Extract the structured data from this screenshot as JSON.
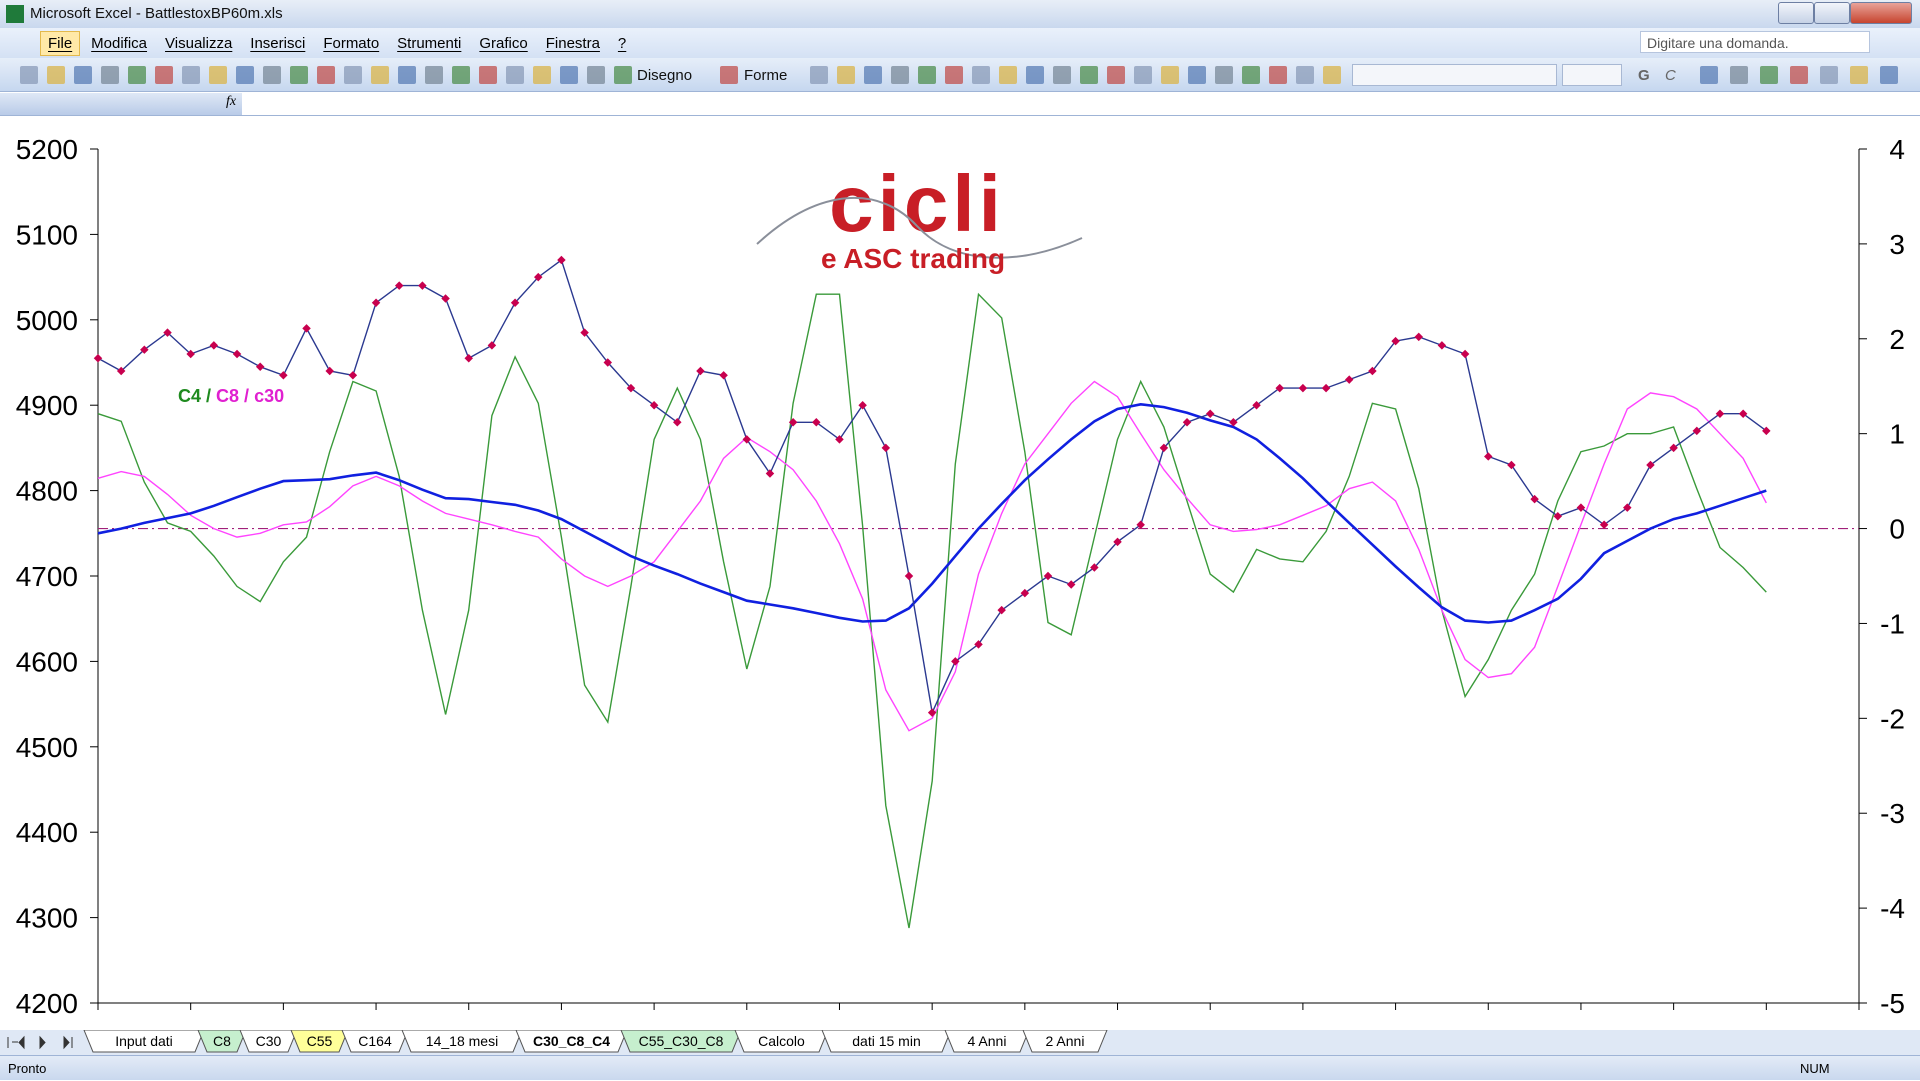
{
  "window": {
    "title": "Microsoft Excel - BattlestoxBP60m.xls",
    "help_box": "Digitare una domanda."
  },
  "menu": [
    "File",
    "Modifica",
    "Visualizza",
    "Inserisci",
    "Formato",
    "Strumenti",
    "Grafico",
    "Finestra",
    "?"
  ],
  "toolbar": {
    "draw": "Disegno",
    "shapes": "Forme",
    "bold": "G",
    "italic": "C"
  },
  "formula_bar": {
    "fx": "fx"
  },
  "sheet_tabs": [
    {
      "label": "Input dati",
      "color": "#ffffff"
    },
    {
      "label": "C8",
      "color": "#c6efce"
    },
    {
      "label": "C30",
      "color": "#ffffff"
    },
    {
      "label": "C55",
      "color": "#ffff99"
    },
    {
      "label": "C164",
      "color": "#ffffff"
    },
    {
      "label": "14_18 mesi",
      "color": "#ffffff"
    },
    {
      "label": "C30_C8_C4",
      "color": "#ffffff"
    },
    {
      "label": "C55_C30_C8",
      "color": "#c6efce"
    },
    {
      "label": "Calcolo",
      "color": "#ffffff"
    },
    {
      "label": "dati 15 min",
      "color": "#ffffff"
    },
    {
      "label": "4 Anni",
      "color": "#ffffff"
    },
    {
      "label": "2 Anni",
      "color": "#ffffff"
    }
  ],
  "active_tab": 6,
  "status": {
    "left": "Pronto",
    "right": "NUM"
  },
  "chart_data": {
    "type": "line",
    "logo": {
      "title": "cicli",
      "subtitle": "e ASC trading"
    },
    "legend_separator": "/",
    "x": [
      0,
      1,
      2,
      3,
      4,
      5,
      6,
      7,
      8,
      9,
      10,
      11,
      12,
      13,
      14,
      15,
      16,
      17,
      18,
      19,
      20,
      21,
      22,
      23,
      24,
      25,
      26,
      27,
      28,
      29,
      30,
      31,
      32,
      33,
      34,
      35,
      36,
      37,
      38,
      39,
      40,
      41,
      42,
      43,
      44,
      45,
      46,
      47,
      48,
      49,
      50,
      51,
      52,
      53,
      54,
      55,
      56,
      57,
      58,
      59,
      60,
      61,
      62,
      63,
      64,
      65,
      66,
      67,
      68,
      69,
      70,
      71,
      72
    ],
    "xlim": [
      0,
      76
    ],
    "xticks": [
      0,
      4,
      8,
      12,
      16,
      20,
      24,
      28,
      32,
      36,
      40,
      44,
      48,
      52,
      56,
      60,
      64,
      68,
      72,
      76
    ],
    "ylim": [
      4200,
      5200
    ],
    "yticks": [
      4200,
      4300,
      4400,
      4500,
      4600,
      4700,
      4800,
      4900,
      5000,
      5100,
      5200
    ],
    "y2lim": [
      -5,
      4
    ],
    "y2ticks": [
      -5,
      -4,
      -3,
      -2,
      -1,
      0,
      1,
      2,
      3,
      4
    ],
    "reference_line": {
      "value": 0,
      "axis": "y2",
      "color": "#a0207a"
    },
    "series": [
      {
        "name": "C4",
        "color": "#3a9a3a",
        "label_color": "#1e8a1e",
        "axis": "y2",
        "values": [
          1.21,
          1.13,
          0.49,
          0.06,
          -0.03,
          -0.29,
          -0.61,
          -0.77,
          -0.35,
          -0.09,
          0.81,
          1.55,
          1.45,
          0.55,
          -0.86,
          -1.96,
          -0.86,
          1.19,
          1.81,
          1.32,
          -0.09,
          -1.65,
          -2.04,
          -0.61,
          0.94,
          1.48,
          0.94,
          -0.35,
          -1.48,
          -0.61,
          1.32,
          2.47,
          2.47,
          0.03,
          -2.92,
          -4.21,
          -2.66,
          0.68,
          2.47,
          2.22,
          0.81,
          -0.99,
          -1.12,
          -0.09,
          0.94,
          1.55,
          1.07,
          0.29,
          -0.48,
          -0.67,
          -0.22,
          -0.32,
          -0.35,
          -0.03,
          0.55,
          1.32,
          1.26,
          0.42,
          -0.86,
          -1.77,
          -1.38,
          -0.86,
          -0.48,
          0.29,
          0.81,
          0.87,
          1.0,
          1.0,
          1.07,
          0.42,
          -0.2,
          -0.41,
          -0.67
        ]
      },
      {
        "name": "C8",
        "color": "#ff44ff",
        "label_color": "#e020d0",
        "axis": "y2",
        "values": [
          0.53,
          0.6,
          0.55,
          0.36,
          0.14,
          0.0,
          -0.09,
          -0.05,
          0.04,
          0.07,
          0.23,
          0.45,
          0.55,
          0.45,
          0.29,
          0.16,
          0.1,
          0.04,
          -0.03,
          -0.09,
          -0.32,
          -0.5,
          -0.61,
          -0.5,
          -0.35,
          -0.03,
          0.29,
          0.74,
          0.96,
          0.81,
          0.62,
          0.29,
          -0.16,
          -0.74,
          -1.7,
          -2.13,
          -2.0,
          -1.51,
          -0.48,
          0.16,
          0.68,
          1.0,
          1.32,
          1.55,
          1.39,
          1.0,
          0.62,
          0.32,
          0.04,
          -0.03,
          -0.01,
          0.04,
          0.14,
          0.24,
          0.42,
          0.49,
          0.29,
          -0.22,
          -0.86,
          -1.38,
          -1.57,
          -1.53,
          -1.25,
          -0.61,
          0.04,
          0.68,
          1.26,
          1.43,
          1.39,
          1.26,
          1.0,
          0.74,
          0.27
        ]
      },
      {
        "name": "c30",
        "color": "#1020e0",
        "label_color": "#e020d0",
        "axis": "y2",
        "values": [
          -0.05,
          0.0,
          0.06,
          0.11,
          0.16,
          0.24,
          0.33,
          0.42,
          0.5,
          0.51,
          0.52,
          0.56,
          0.59,
          0.51,
          0.41,
          0.32,
          0.31,
          0.28,
          0.25,
          0.19,
          0.1,
          -0.03,
          -0.16,
          -0.29,
          -0.39,
          -0.48,
          -0.58,
          -0.67,
          -0.76,
          -0.8,
          -0.84,
          -0.89,
          -0.94,
          -0.98,
          -0.97,
          -0.84,
          -0.58,
          -0.29,
          0.0,
          0.26,
          0.51,
          0.73,
          0.94,
          1.13,
          1.26,
          1.31,
          1.28,
          1.22,
          1.14,
          1.07,
          0.94,
          0.74,
          0.53,
          0.29,
          0.06,
          -0.17,
          -0.4,
          -0.62,
          -0.83,
          -0.97,
          -0.99,
          -0.97,
          -0.86,
          -0.74,
          -0.53,
          -0.26,
          -0.13,
          0.0,
          0.1,
          0.16,
          0.24,
          0.32,
          0.4
        ]
      },
      {
        "color": "#2b3990",
        "marker_color": "#c8004e",
        "values": [
          4955,
          4940,
          4965,
          4985,
          4960,
          4970,
          4960,
          4945,
          4935,
          4990,
          4940,
          4935,
          5020,
          5040,
          5040,
          5025,
          4955,
          4970,
          5020,
          5050,
          5070,
          4985,
          4950,
          4920,
          4900,
          4880,
          4940,
          4935,
          4860,
          4820,
          4880,
          4880,
          4860,
          4900,
          4850,
          4700,
          4540,
          4600,
          4620,
          4660,
          4680,
          4700,
          4690,
          4710,
          4740,
          4760,
          4850,
          4880,
          4890,
          4880,
          4900,
          4920,
          4920,
          4920,
          4930,
          4940,
          4975,
          4980,
          4970,
          4960,
          4840,
          4830,
          4790,
          4770,
          4780,
          4760,
          4780,
          4830,
          4850,
          4870,
          4890,
          4890,
          4870
        ]
      }
    ]
  }
}
